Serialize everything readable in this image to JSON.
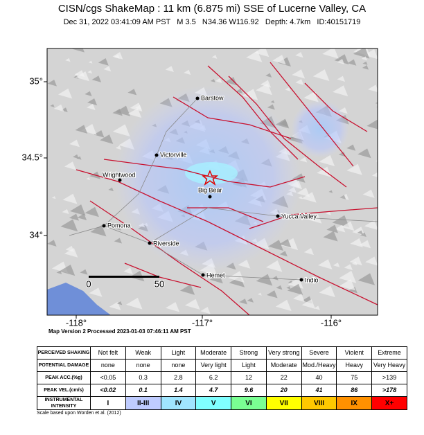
{
  "header": {
    "title": "CISN/cgs ShakeMap : 11 km (6.875 mi) SSE of Lucerne Valley, CA",
    "subtitle": "Dec 31, 2022 03:41:09 AM PST   M 3.5   N34.36 W116.92   Depth: 4.7km   ID:40151719"
  },
  "map": {
    "lat_labels": [
      "35°",
      "34.5°",
      "34°"
    ],
    "lon_labels": [
      "-118°",
      "-117°",
      "-116°"
    ],
    "cities": [
      "Barstow",
      "Victorville",
      "Wrightwood",
      "Big Bear",
      "Pomona",
      "Riverside",
      "Yucca Valley",
      "Hemet",
      "Indio"
    ],
    "scale_labels": [
      "0",
      "50"
    ]
  },
  "version": "Map Version 2 Processed 2023-01-03 07:46:11 AM PST",
  "table": {
    "row_labels": [
      "PERCEIVED SHAKING",
      "POTENTIAL DAMAGE",
      "PEAK ACC.(%g)",
      "PEAK VEL.(cm/s)",
      "INSTRUMENTAL INTENSITY"
    ],
    "rows": [
      [
        "Not felt",
        "Weak",
        "Light",
        "Moderate",
        "Strong",
        "Very strong",
        "Severe",
        "Violent",
        "Extreme"
      ],
      [
        "none",
        "none",
        "none",
        "Very light",
        "Light",
        "Moderate",
        "Mod./Heavy",
        "Heavy",
        "Very Heavy"
      ],
      [
        "<0.05",
        "0.3",
        "2.8",
        "6.2",
        "12",
        "22",
        "40",
        "75",
        ">139"
      ],
      [
        "<0.02",
        "0.1",
        "1.4",
        "4.7",
        "9.6",
        "20",
        "41",
        "86",
        ">178"
      ],
      [
        "I",
        "II-III",
        "IV",
        "V",
        "VI",
        "VII",
        "VIII",
        "IX",
        "X+"
      ]
    ]
  },
  "footnote": "Scale based upon Worden et al. (2012)"
}
